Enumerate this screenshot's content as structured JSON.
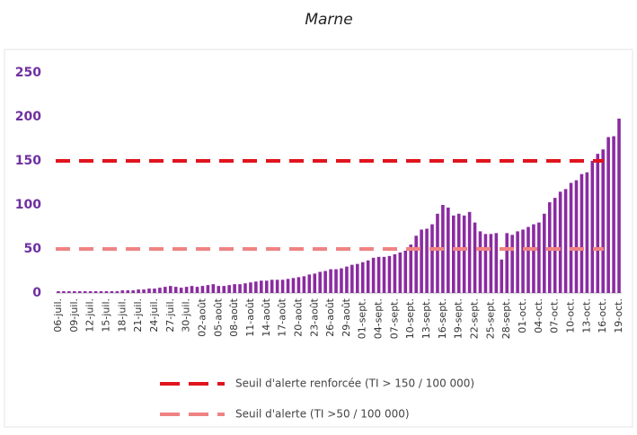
{
  "chart_data": {
    "type": "bar",
    "title": "Marne",
    "categories": [
      "06-juil.",
      null,
      null,
      "09-juil.",
      null,
      null,
      "12-juil.",
      null,
      null,
      "15-juil.",
      null,
      null,
      "18-juil.",
      null,
      null,
      "21-juil.",
      null,
      null,
      "24-juil.",
      null,
      null,
      "27-juil.",
      null,
      null,
      "30-juil.",
      null,
      null,
      "02-août",
      null,
      null,
      "05-août",
      null,
      null,
      "08-août",
      null,
      null,
      "11-août",
      null,
      null,
      "14-août",
      null,
      null,
      "17-août",
      null,
      null,
      "20-août",
      null,
      null,
      "23-août",
      null,
      null,
      "26-août",
      null,
      null,
      "29-août",
      null,
      null,
      "01-sept.",
      null,
      null,
      "04-sept.",
      null,
      null,
      "07-sept.",
      null,
      null,
      "10-sept.",
      null,
      null,
      "13-sept.",
      null,
      null,
      "16-sept.",
      null,
      null,
      "19-sept.",
      null,
      null,
      "22-sept.",
      null,
      null,
      "25-sept.",
      null,
      null,
      "28-sept.",
      null,
      null,
      "01-oct.",
      null,
      null,
      "04-oct.",
      null,
      null,
      "07-oct.",
      null,
      null,
      "10-oct.",
      null,
      null,
      "13-oct.",
      null,
      null,
      "16-oct.",
      null,
      null,
      "19-oct."
    ],
    "values": [
      2,
      2,
      2,
      2,
      2,
      2,
      2,
      2,
      2,
      2,
      2,
      2,
      3,
      3,
      3,
      4,
      4,
      5,
      5,
      6,
      7,
      8,
      7,
      6,
      7,
      8,
      7,
      8,
      9,
      10,
      8,
      8,
      9,
      10,
      10,
      11,
      12,
      13,
      14,
      14,
      15,
      15,
      15,
      16,
      17,
      18,
      19,
      21,
      22,
      24,
      25,
      27,
      27,
      28,
      30,
      32,
      33,
      35,
      37,
      40,
      41,
      41,
      42,
      44,
      46,
      48,
      55,
      65,
      72,
      73,
      78,
      90,
      100,
      97,
      88,
      90,
      88,
      92,
      80,
      70,
      67,
      67,
      68,
      38,
      68,
      66,
      70,
      72,
      75,
      78,
      80,
      90,
      103,
      108,
      115,
      118,
      125,
      128,
      135,
      137,
      150,
      158,
      163,
      177,
      178,
      198
    ],
    "color": "#8a2ba0",
    "ylim": [
      0,
      250
    ],
    "yticks": [
      0,
      50,
      100,
      150,
      200,
      250
    ],
    "thresholds": [
      {
        "name": "Seuil d'alerte renforcée (TI > 150 / 100 000)",
        "color": "#e0141e",
        "value": 150
      },
      {
        "name": "Seuil d'alerte (TI >50 / 100 000)",
        "color": "#ef8383",
        "value": 50
      }
    ]
  }
}
